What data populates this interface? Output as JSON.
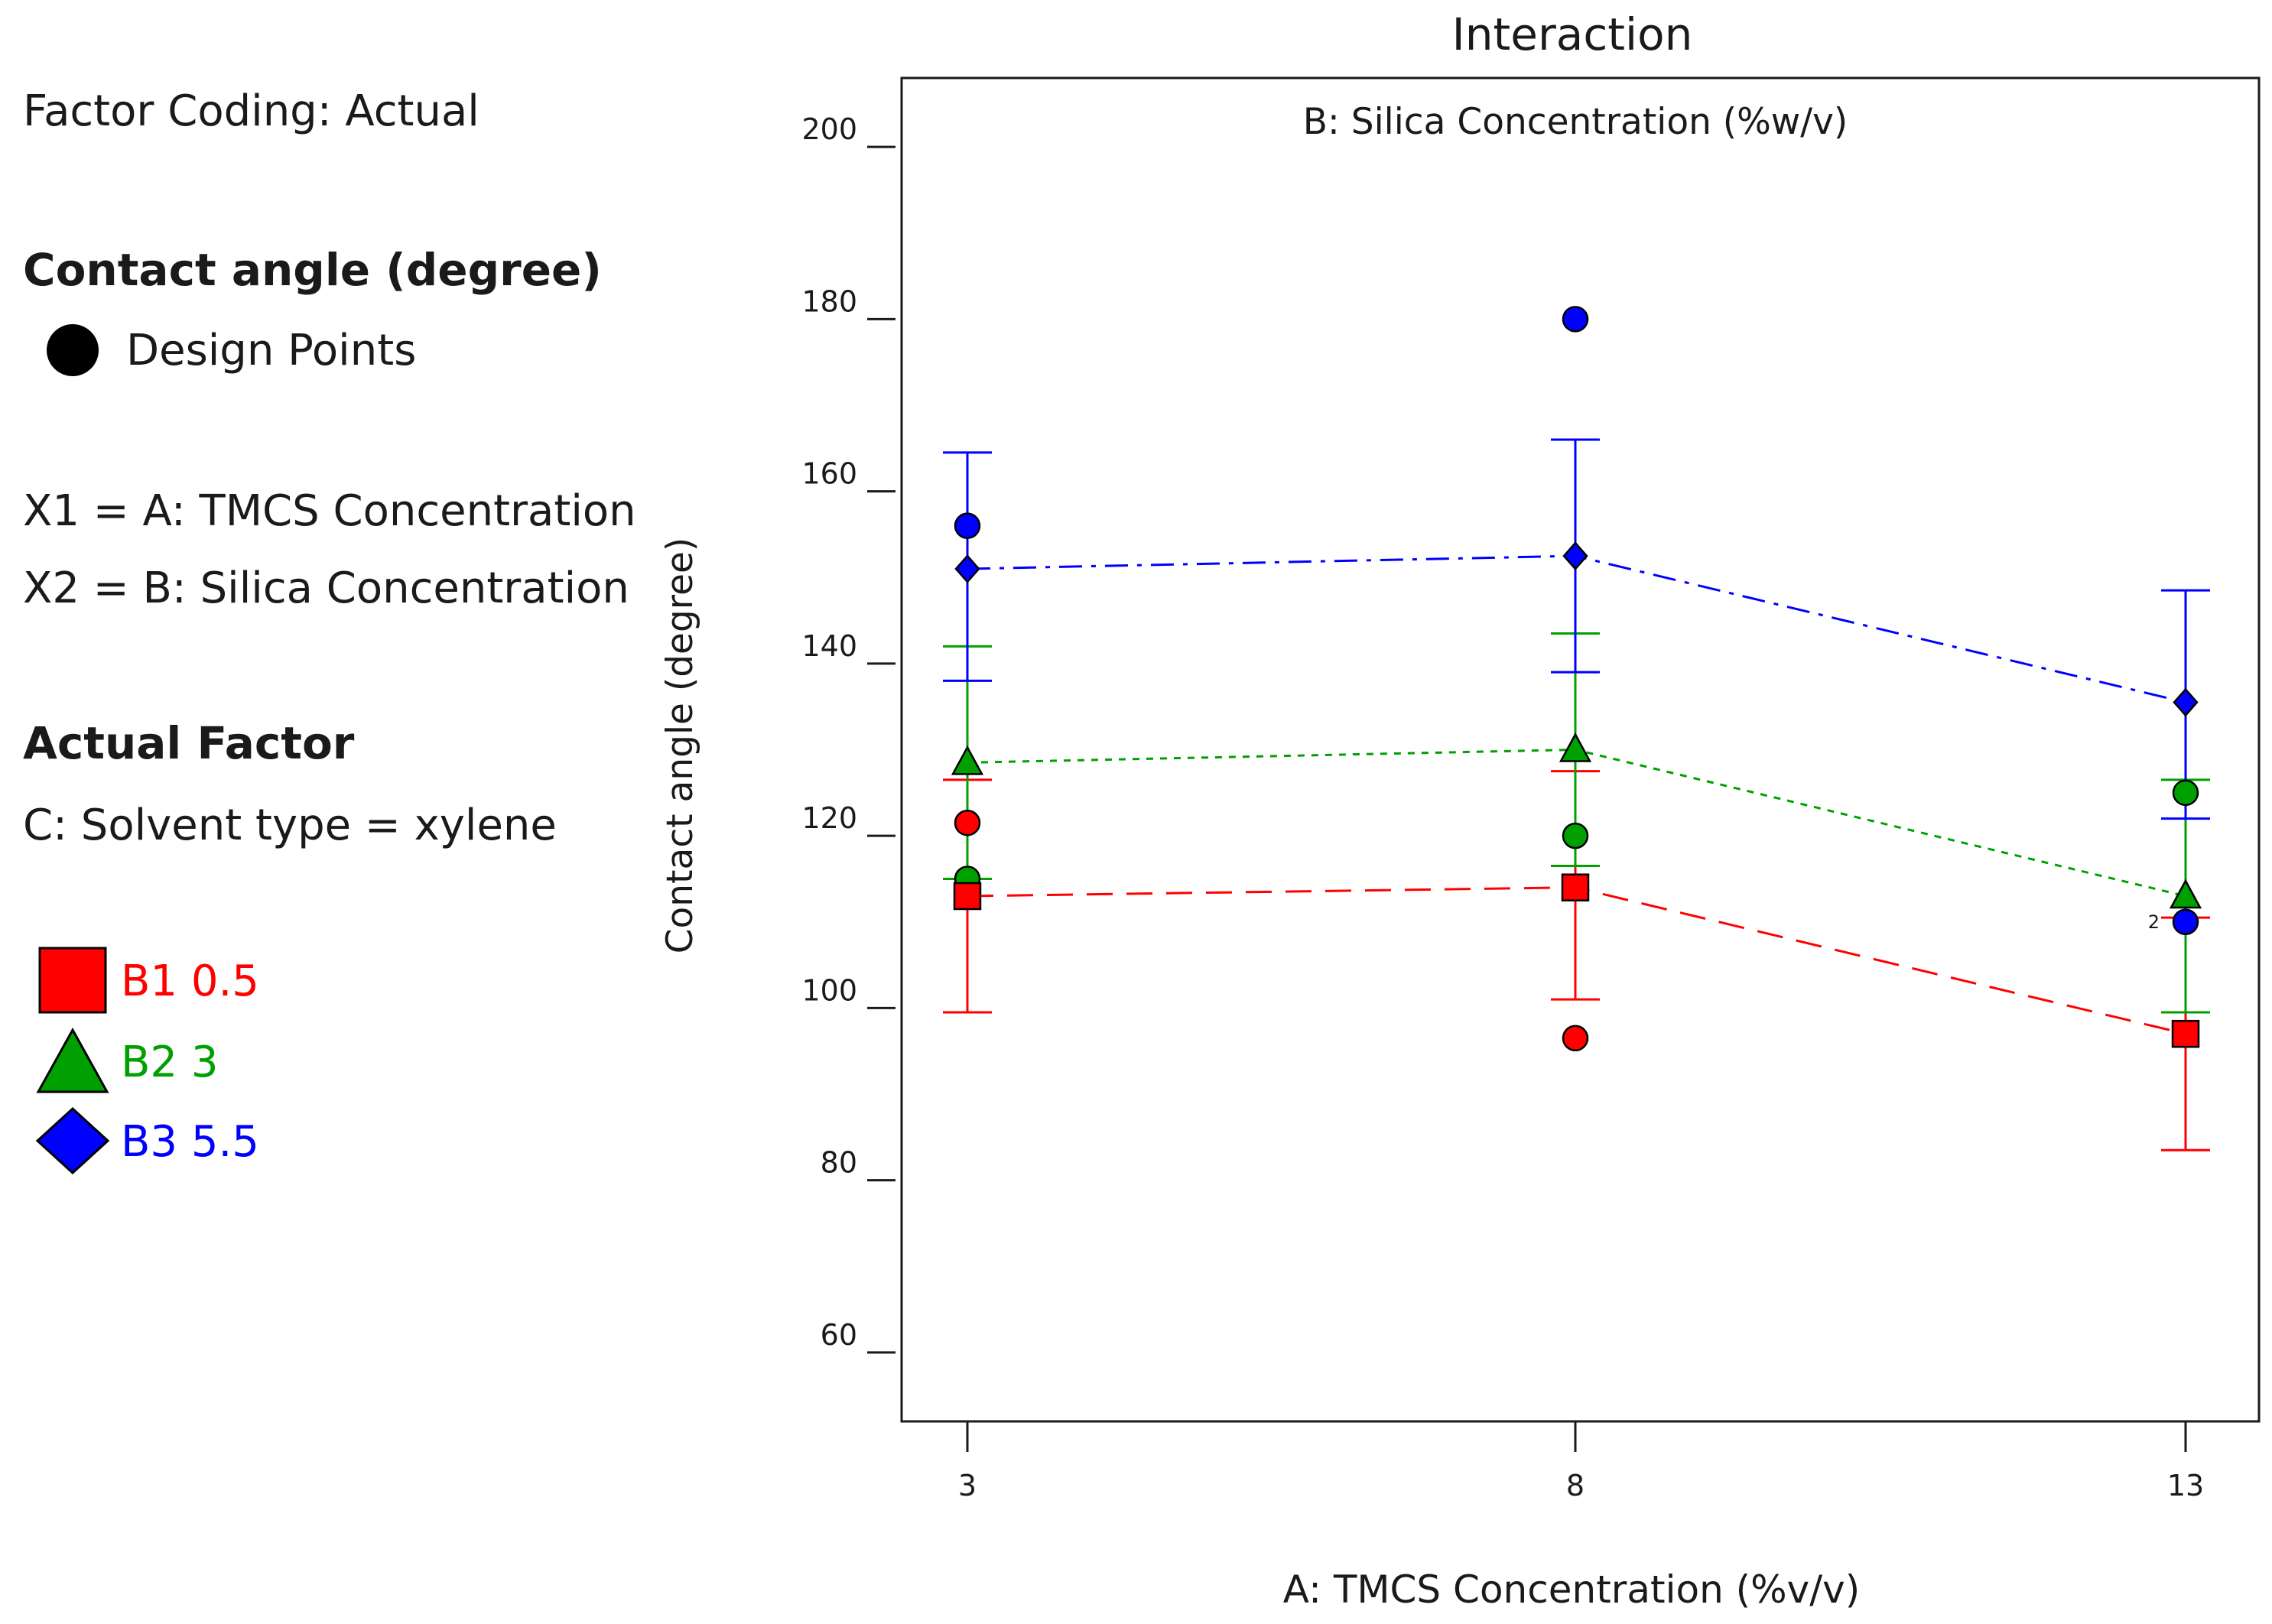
{
  "panel": {
    "factor_coding": "Factor Coding: Actual",
    "response_heading": "Contact angle (degree)",
    "design_points_label": "Design Points",
    "x1_def": "X1 = A: TMCS Concentration",
    "x2_def": "X2 = B: Silica Concentration",
    "actual_factor_heading": "Actual Factor",
    "actual_factor_value": "C: Solvent type = xylene"
  },
  "chart_data": {
    "type": "line",
    "title": "Interaction",
    "subtitle": "B: Silica Concentration (%w/v)",
    "xlabel": "A: TMCS Concentration (%v/v)",
    "ylabel": "Contact angle (degree)",
    "categories": [
      "3",
      "8",
      "13"
    ],
    "x": [
      3,
      8,
      13
    ],
    "ylim": [
      52,
      208
    ],
    "yticks": [
      60,
      80,
      100,
      120,
      140,
      160,
      180,
      200
    ],
    "ytick_labels": [
      "60",
      "80",
      "100",
      "120",
      "140",
      "160",
      "180",
      "200"
    ],
    "series": [
      {
        "name": "B1 0.5",
        "legend": "B1 0.5",
        "color": "#ff0000",
        "marker": "square",
        "dash": "dash",
        "values": [
          113,
          114,
          97
        ],
        "ci_low": [
          99.5,
          101,
          83.5
        ],
        "ci_high": [
          126.5,
          127.5,
          110.5
        ],
        "design_points": [
          [
            3,
            121.5
          ],
          [
            8,
            96.5
          ]
        ]
      },
      {
        "name": "B2 3",
        "legend": "B2 3",
        "color": "#00a000",
        "marker": "triangle",
        "dash": "dot",
        "values": [
          128.5,
          130,
          113
        ],
        "ci_low": [
          115,
          116.5,
          99.5
        ],
        "ci_high": [
          142,
          143.5,
          126.5
        ],
        "design_points": [
          [
            3,
            115
          ],
          [
            8,
            120
          ],
          [
            13,
            125
          ]
        ]
      },
      {
        "name": "B3 5.5",
        "legend": "B3 5.5",
        "color": "#0000ff",
        "marker": "diamond",
        "dash": "dashdot",
        "values": [
          151,
          152.5,
          135.5
        ],
        "ci_low": [
          138,
          139,
          122
        ],
        "ci_high": [
          164.5,
          166,
          148.5
        ],
        "design_points": [
          [
            3,
            156
          ],
          [
            8,
            180
          ],
          [
            13,
            110
          ]
        ]
      }
    ],
    "annotations": [
      {
        "x": 13,
        "y": 110,
        "text": "2"
      }
    ]
  }
}
